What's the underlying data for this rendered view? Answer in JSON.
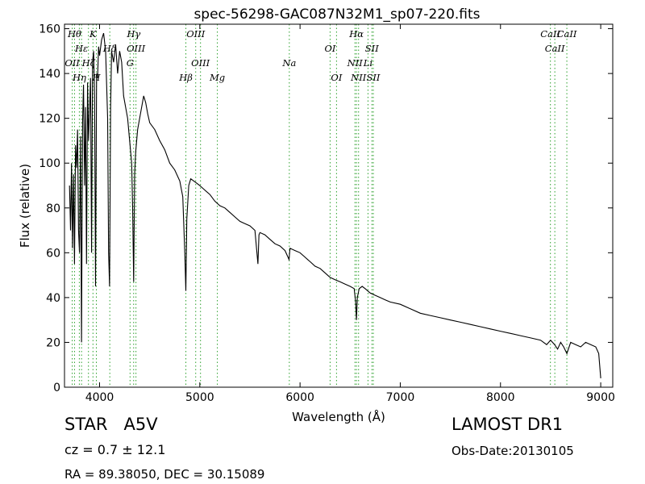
{
  "chart_data": {
    "type": "line",
    "title": "spec-56298-GAC087N32M1_sp07-220.fits",
    "xlabel": "Wavelength (Å)",
    "ylabel": "Flux (relative)",
    "xlim": [
      3650,
      9120
    ],
    "ylim": [
      0,
      162
    ],
    "xticks": [
      4000,
      5000,
      6000,
      7000,
      8000,
      9000
    ],
    "yticks": [
      0,
      20,
      40,
      60,
      80,
      100,
      120,
      140,
      160
    ],
    "grid": false,
    "line_color": "#000000",
    "marker_color": "#2ca02c",
    "series": [
      {
        "x": [
          3700,
          3710,
          3720,
          3730,
          3740,
          3750,
          3760,
          3770,
          3780,
          3790,
          3800,
          3810,
          3820,
          3830,
          3840,
          3850,
          3860,
          3870,
          3880,
          3890,
          3900,
          3910,
          3920,
          3930,
          3940,
          3950,
          3960,
          3970,
          3980,
          3990,
          4000,
          4020,
          4040,
          4060,
          4080,
          4090,
          4100,
          4110,
          4120,
          4140,
          4160,
          4180,
          4200,
          4220,
          4240,
          4260,
          4280,
          4300,
          4320,
          4330,
          4340,
          4350,
          4360,
          4380,
          4400,
          4420,
          4440,
          4460,
          4480,
          4500,
          4550,
          4600,
          4650,
          4700,
          4750,
          4800,
          4830,
          4850,
          4861,
          4870,
          4890,
          4910,
          4940,
          4970,
          5000,
          5050,
          5100,
          5150,
          5200,
          5250,
          5300,
          5350,
          5400,
          5450,
          5500,
          5550,
          5580,
          5590,
          5600,
          5650,
          5700,
          5750,
          5800,
          5850,
          5890,
          5900,
          5950,
          6000,
          6050,
          6100,
          6150,
          6200,
          6250,
          6300,
          6350,
          6400,
          6450,
          6500,
          6540,
          6555,
          6563,
          6572,
          6590,
          6620,
          6650,
          6700,
          6750,
          6800,
          6850,
          6900,
          7000,
          7100,
          7200,
          7300,
          7400,
          7500,
          7600,
          7700,
          7800,
          7900,
          8000,
          8100,
          8200,
          8300,
          8400,
          8460,
          8500,
          8540,
          8570,
          8600,
          8630,
          8662,
          8700,
          8750,
          8800,
          8850,
          8900,
          8950,
          8980,
          9000
        ],
        "values": [
          90,
          70,
          100,
          62,
          95,
          55,
          108,
          98,
          115,
          70,
          60,
          112,
          20,
          118,
          135,
          90,
          125,
          55,
          136,
          110,
          124,
          138,
          60,
          145,
          150,
          130,
          45,
          140,
          138,
          152,
          148,
          155,
          158,
          150,
          120,
          60,
          45,
          125,
          150,
          145,
          153,
          140,
          150,
          145,
          130,
          125,
          120,
          110,
          100,
          80,
          47,
          95,
          105,
          115,
          120,
          125,
          130,
          127,
          122,
          118,
          115,
          110,
          106,
          100,
          97,
          92,
          85,
          60,
          43,
          75,
          90,
          93,
          92,
          91,
          90,
          88,
          86,
          83,
          81,
          80,
          78,
          76,
          74,
          73,
          72,
          70,
          55,
          68,
          69,
          68,
          66,
          64,
          63,
          61,
          57,
          62,
          61,
          60,
          58,
          56,
          54,
          53,
          51,
          49,
          48,
          47,
          46,
          45,
          44,
          38,
          30,
          40,
          44,
          45,
          44,
          42,
          41,
          40,
          39,
          38,
          37,
          35,
          33,
          32,
          31,
          30,
          29,
          28,
          27,
          26,
          25,
          24,
          23,
          22,
          21,
          19,
          21,
          19,
          17,
          20,
          18,
          15,
          20,
          19,
          18,
          20,
          19,
          18,
          15,
          4
        ]
      }
    ],
    "lines": {
      "top": [
        {
          "x": 3750,
          "label": "Hθ"
        },
        {
          "x": 3820,
          "label": "Hε"
        },
        {
          "x": 3934,
          "label": "K"
        },
        {
          "x": 4102,
          "label": "Hδ"
        },
        {
          "x": 4340,
          "label": "Hγ"
        },
        {
          "x": 4363,
          "label": "OIII"
        },
        {
          "x": 4959,
          "label": "OIII"
        },
        {
          "x": 6300,
          "label": "OI"
        },
        {
          "x": 6563,
          "label": "Hα"
        },
        {
          "x": 6717,
          "label": "SII"
        },
        {
          "x": 8498,
          "label": "CaII"
        },
        {
          "x": 8542,
          "label": "CaII"
        },
        {
          "x": 8662,
          "label": "CaII"
        }
      ],
      "bottom": [
        {
          "x": 3727,
          "label": "OII"
        },
        {
          "x": 3798,
          "label": "Hη"
        },
        {
          "x": 3889,
          "label": "Hζ"
        },
        {
          "x": 3968,
          "label": "H"
        },
        {
          "x": 4304,
          "label": "G"
        },
        {
          "x": 4861,
          "label": "Hβ"
        },
        {
          "x": 5007,
          "label": "OIII"
        },
        {
          "x": 5175,
          "label": "Mg"
        },
        {
          "x": 5893,
          "label": "Na"
        },
        {
          "x": 6364,
          "label": "OI"
        },
        {
          "x": 6548,
          "label": "NII"
        },
        {
          "x": 6584,
          "label": "NII"
        },
        {
          "x": 6678,
          "label": "Li"
        },
        {
          "x": 6731,
          "label": "SII"
        }
      ]
    }
  },
  "info": {
    "class": "STAR",
    "subclass": "A5V",
    "survey": "LAMOST DR1",
    "redshift": "cz = 0.7 ± 12.1",
    "obs_date": "Obs-Date:20130105",
    "coords": "RA = 89.38050, DEC = 30.15089"
  }
}
